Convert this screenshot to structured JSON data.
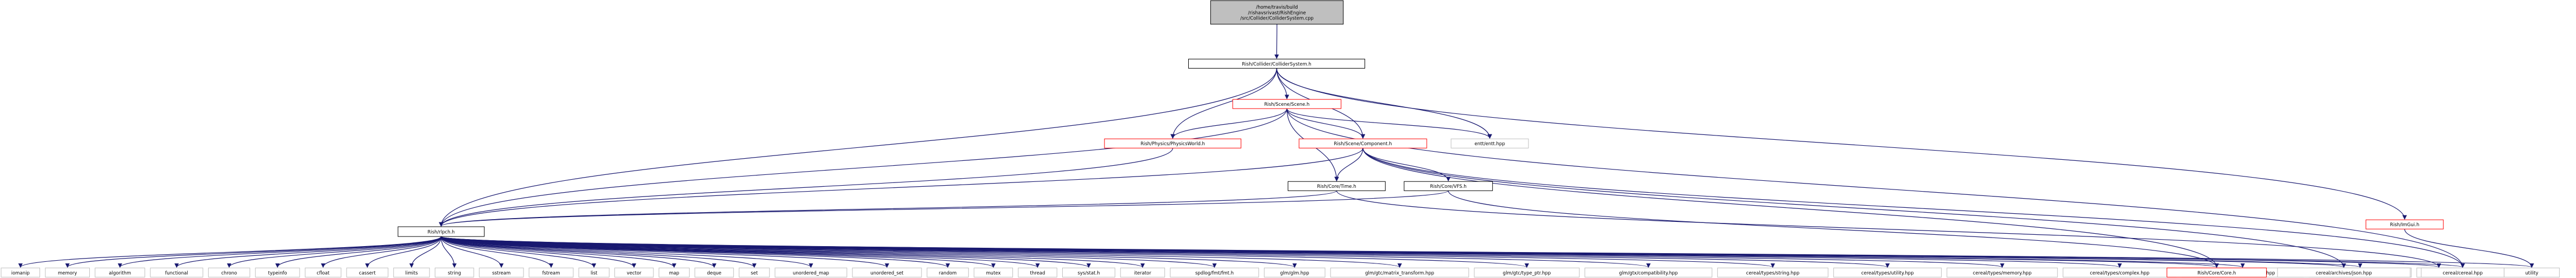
{
  "colors": {
    "edge": "#191970",
    "border_doc": "#000000",
    "border_incomplete": "#ff0000",
    "border_system": "#bfbfbf",
    "root_fill": "#bfbfbf",
    "node_fill": "#ffffff"
  },
  "nodes": [
    {
      "id": "root",
      "lines": [
        "/home/travis/build",
        "/rishavsrivast/RishEngine",
        "/src/Collider/ColliderSystem.cpp"
      ],
      "kind": "root"
    },
    {
      "id": "colsys",
      "lines": [
        "Rish/Collider/ColliderSystem.h"
      ],
      "kind": "doc"
    },
    {
      "id": "scene",
      "lines": [
        "Rish/Scene/Scene.h"
      ],
      "kind": "incomplete"
    },
    {
      "id": "physworld",
      "lines": [
        "Rish/Physics/PhysicsWorld.h"
      ],
      "kind": "incomplete"
    },
    {
      "id": "scenecomp",
      "lines": [
        "Rish/Scene/Component.h"
      ],
      "kind": "incomplete"
    },
    {
      "id": "entt",
      "lines": [
        "entt/entt.hpp"
      ],
      "kind": "system"
    },
    {
      "id": "imgui",
      "lines": [
        "Rish/ImGui.h"
      ],
      "kind": "incomplete"
    },
    {
      "id": "time",
      "lines": [
        "Rish/Core/Time.h"
      ],
      "kind": "doc"
    },
    {
      "id": "vfs",
      "lines": [
        "Rish/Core/VFS.h"
      ],
      "kind": "doc"
    },
    {
      "id": "rlpch",
      "lines": [
        "Rish/rlpch.h"
      ],
      "kind": "doc"
    },
    {
      "id": "iomanip",
      "lines": [
        "iomanip"
      ],
      "kind": "system"
    },
    {
      "id": "memory",
      "lines": [
        "memory"
      ],
      "kind": "system"
    },
    {
      "id": "algorithm",
      "lines": [
        "algorithm"
      ],
      "kind": "system"
    },
    {
      "id": "functional",
      "lines": [
        "functional"
      ],
      "kind": "system"
    },
    {
      "id": "chrono",
      "lines": [
        "chrono"
      ],
      "kind": "system"
    },
    {
      "id": "typeinfo",
      "lines": [
        "typeinfo"
      ],
      "kind": "system"
    },
    {
      "id": "cfloat",
      "lines": [
        "cfloat"
      ],
      "kind": "system"
    },
    {
      "id": "cassert",
      "lines": [
        "cassert"
      ],
      "kind": "system"
    },
    {
      "id": "limits",
      "lines": [
        "limits"
      ],
      "kind": "system"
    },
    {
      "id": "string",
      "lines": [
        "string"
      ],
      "kind": "system"
    },
    {
      "id": "sstream",
      "lines": [
        "sstream"
      ],
      "kind": "system"
    },
    {
      "id": "fstream",
      "lines": [
        "fstream"
      ],
      "kind": "system"
    },
    {
      "id": "list",
      "lines": [
        "list"
      ],
      "kind": "system"
    },
    {
      "id": "vector",
      "lines": [
        "vector"
      ],
      "kind": "system"
    },
    {
      "id": "map",
      "lines": [
        "map"
      ],
      "kind": "system"
    },
    {
      "id": "deque",
      "lines": [
        "deque"
      ],
      "kind": "system"
    },
    {
      "id": "set",
      "lines": [
        "set"
      ],
      "kind": "system"
    },
    {
      "id": "umap",
      "lines": [
        "unordered_map"
      ],
      "kind": "system"
    },
    {
      "id": "uset",
      "lines": [
        "unordered_set"
      ],
      "kind": "system"
    },
    {
      "id": "random",
      "lines": [
        "random"
      ],
      "kind": "system"
    },
    {
      "id": "mutex",
      "lines": [
        "mutex"
      ],
      "kind": "system"
    },
    {
      "id": "thread",
      "lines": [
        "thread"
      ],
      "kind": "system"
    },
    {
      "id": "sysstat",
      "lines": [
        "sys/stat.h"
      ],
      "kind": "system"
    },
    {
      "id": "iterator",
      "lines": [
        "iterator"
      ],
      "kind": "system"
    },
    {
      "id": "spdlog",
      "lines": [
        "spdlog/fmt/fmt.h"
      ],
      "kind": "system"
    },
    {
      "id": "glm",
      "lines": [
        "glm/glm.hpp"
      ],
      "kind": "system"
    },
    {
      "id": "glmmat",
      "lines": [
        "glm/gtc/matrix_transform.hpp"
      ],
      "kind": "system"
    },
    {
      "id": "glmptr",
      "lines": [
        "glm/gtc/type_ptr.hpp"
      ],
      "kind": "system"
    },
    {
      "id": "glmcompat",
      "lines": [
        "glm/gtx/compatibility.hpp"
      ],
      "kind": "system"
    },
    {
      "id": "cstr",
      "lines": [
        "cereal/types/string.hpp"
      ],
      "kind": "system"
    },
    {
      "id": "cutil",
      "lines": [
        "cereal/types/utility.hpp"
      ],
      "kind": "system"
    },
    {
      "id": "cmem",
      "lines": [
        "cereal/types/memory.hpp"
      ],
      "kind": "system"
    },
    {
      "id": "ccomplex",
      "lines": [
        "cereal/types/complex.hpp"
      ],
      "kind": "system"
    },
    {
      "id": "cbase",
      "lines": [
        "cereal/types/base_class.hpp"
      ],
      "kind": "system"
    },
    {
      "id": "iconsfont",
      "lines": [
        "IconsFontAwesome5.h"
      ],
      "kind": "system"
    },
    {
      "id": "iostream",
      "lines": [
        "iostream"
      ],
      "kind": "system"
    },
    {
      "id": "rishcore",
      "lines": [
        "Rish/Core/Core.h"
      ],
      "kind": "incomplete"
    },
    {
      "id": "cjson",
      "lines": [
        "cereal/archives/json.hpp"
      ],
      "kind": "system"
    },
    {
      "id": "ccereal",
      "lines": [
        "cereal/cereal.hpp"
      ],
      "kind": "system"
    },
    {
      "id": "utility",
      "lines": [
        "utility"
      ],
      "kind": "system"
    }
  ]
}
